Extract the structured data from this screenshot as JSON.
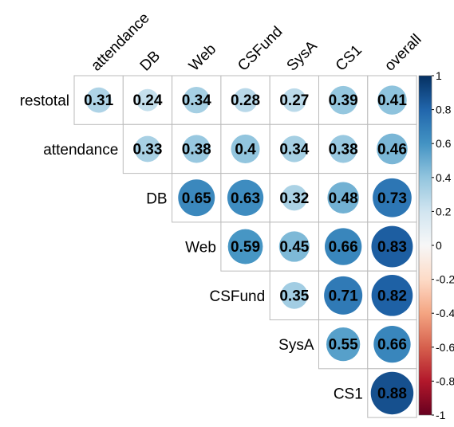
{
  "chart_data": {
    "type": "heatmap",
    "subtype": "correlation-upper-triangle-circles",
    "row_labels": [
      "restotal",
      "attendance",
      "DB",
      "Web",
      "CSFund",
      "SysA",
      "CS1"
    ],
    "column_labels": [
      "attendance",
      "DB",
      "Web",
      "CSFund",
      "SysA",
      "CS1",
      "overall"
    ],
    "values": [
      [
        0.31,
        0.24,
        0.34,
        0.28,
        0.27,
        0.39,
        0.41
      ],
      [
        null,
        0.33,
        0.38,
        0.4,
        0.34,
        0.38,
        0.46
      ],
      [
        null,
        null,
        0.65,
        0.63,
        0.32,
        0.48,
        0.73
      ],
      [
        null,
        null,
        null,
        0.59,
        0.45,
        0.66,
        0.83
      ],
      [
        null,
        null,
        null,
        null,
        0.35,
        0.71,
        0.82
      ],
      [
        null,
        null,
        null,
        null,
        null,
        0.55,
        0.66
      ],
      [
        null,
        null,
        null,
        null,
        null,
        null,
        0.88
      ]
    ],
    "value_labels": [
      [
        "0.31",
        "0.24",
        "0.34",
        "0.28",
        "0.27",
        "0.39",
        "0.41"
      ],
      [
        null,
        "0.33",
        "0.38",
        "0.4",
        "0.34",
        "0.38",
        "0.46"
      ],
      [
        null,
        null,
        "0.65",
        "0.63",
        "0.32",
        "0.48",
        "0.73"
      ],
      [
        null,
        null,
        null,
        "0.59",
        "0.45",
        "0.66",
        "0.83"
      ],
      [
        null,
        null,
        null,
        null,
        "0.35",
        "0.71",
        "0.82"
      ],
      [
        null,
        null,
        null,
        null,
        null,
        "0.55",
        "0.66"
      ],
      [
        null,
        null,
        null,
        null,
        null,
        null,
        "0.88"
      ]
    ],
    "colorbar": {
      "range": [
        -1,
        1
      ],
      "ticks": [
        "1",
        "0.8",
        "0.6",
        "0.4",
        "0.2",
        "0",
        "-0.2",
        "-0.4",
        "-0.6",
        "-0.8",
        "-1"
      ],
      "placement": "right"
    },
    "colors": {
      "negative_end": "#67001f",
      "neutral": "#ffffff",
      "positive_end": "#053061",
      "grid": "#bbbbbb",
      "label_text": "#000000",
      "value_text": "#000000"
    },
    "circle_size_encodes": "absolute correlation"
  }
}
